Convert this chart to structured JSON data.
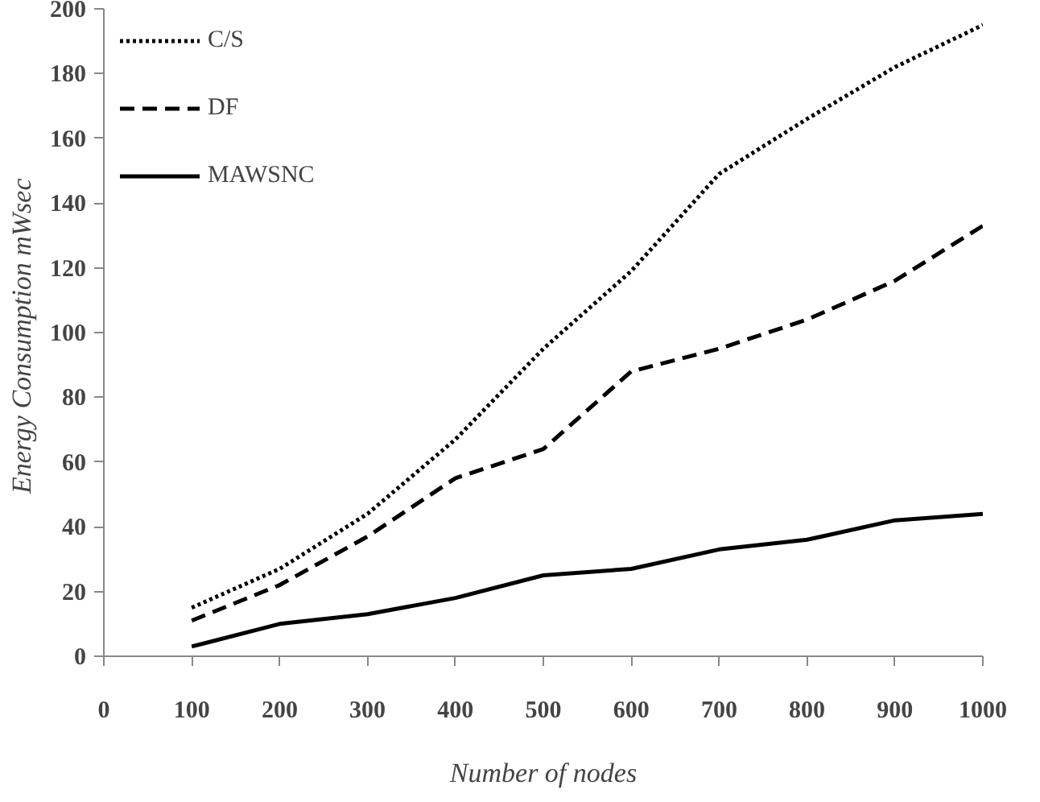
{
  "chart_data": {
    "type": "line",
    "xlabel": "Number of nodes",
    "ylabel": "Energy Consumption  mWsec",
    "x": [
      100,
      200,
      300,
      400,
      500,
      600,
      700,
      800,
      900,
      1000
    ],
    "series": [
      {
        "name": "C/S",
        "color": "#000000",
        "line_style": "dotted",
        "values": [
          15,
          27,
          44,
          67,
          95,
          119,
          149,
          166,
          182,
          195
        ]
      },
      {
        "name": "DF",
        "color": "#000000",
        "line_style": "dashed",
        "values": [
          11,
          22,
          37,
          55,
          64,
          88,
          95,
          104,
          116,
          133
        ]
      },
      {
        "name": "MAWSNC",
        "color": "#000000",
        "line_style": "solid",
        "values": [
          3,
          10,
          13,
          18,
          25,
          27,
          33,
          36,
          42,
          44
        ]
      }
    ],
    "xlim": [
      0,
      1000
    ],
    "xticks": [
      0,
      100,
      200,
      300,
      400,
      500,
      600,
      700,
      800,
      900,
      1000
    ],
    "ylim": [
      0,
      200
    ],
    "yticks": [
      0,
      20,
      40,
      60,
      80,
      100,
      120,
      140,
      160,
      180,
      200
    ],
    "grid": false,
    "legend": "top left",
    "marker": "none"
  }
}
